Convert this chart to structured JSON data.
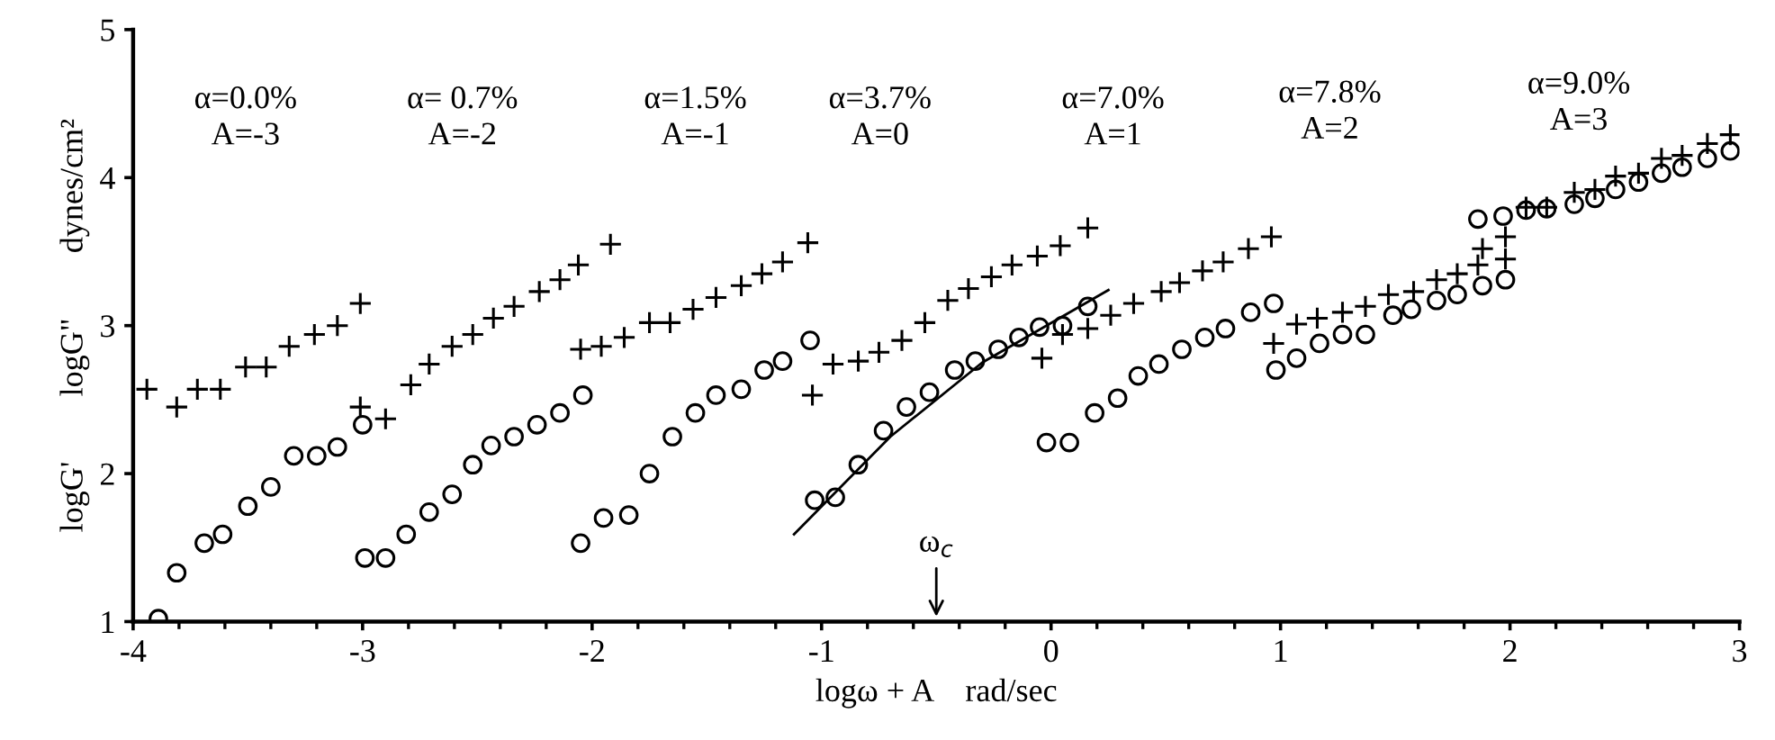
{
  "chart_data": {
    "type": "scatter",
    "xlabel": "logω + A    rad/sec",
    "ylabel": "logG'        logG\"        dynes/cm²",
    "xlim": [
      -4,
      3
    ],
    "ylim": [
      1,
      5
    ],
    "xticks": [
      -4,
      {
        "value": -3.8,
        "label": null
      },
      {
        "value": -3.6,
        "label": null
      },
      {
        "value": -3.4,
        "label": null
      },
      {
        "value": -3.2,
        "label": null
      },
      -3,
      {
        "value": -2.8,
        "label": null
      },
      {
        "value": -2.6,
        "label": null
      },
      {
        "value": -2.4,
        "label": null
      },
      {
        "value": -2.2,
        "label": null
      },
      -2,
      {
        "value": -1.8,
        "label": null
      },
      {
        "value": -1.6,
        "label": null
      },
      {
        "value": -1.4,
        "label": null
      },
      {
        "value": -1.2,
        "label": null
      },
      -1,
      {
        "value": -0.8,
        "label": null
      },
      {
        "value": -0.6,
        "label": null
      },
      {
        "value": -0.4,
        "label": null
      },
      {
        "value": -0.2,
        "label": null
      },
      0,
      {
        "value": 0.2,
        "label": null
      },
      {
        "value": 0.4,
        "label": null
      },
      {
        "value": 0.6,
        "label": null
      },
      {
        "value": 0.8,
        "label": null
      },
      1,
      {
        "value": 1.2,
        "label": null
      },
      {
        "value": 1.4,
        "label": null
      },
      {
        "value": 1.6,
        "label": null
      },
      {
        "value": 1.8,
        "label": null
      },
      2,
      {
        "value": 2.2,
        "label": null
      },
      {
        "value": 2.4,
        "label": null
      },
      {
        "value": 2.6,
        "label": null
      },
      {
        "value": 2.8,
        "label": null
      },
      3
    ],
    "yticks": [
      1,
      2,
      3,
      4,
      5
    ],
    "grid": false,
    "legend": false,
    "series": [
      {
        "color": "#000000",
        "marker": "circle",
        "x": [
          -3.89,
          -3.81,
          -3.69,
          -3.61,
          -3.5,
          -3.4,
          -3.3,
          -3.2,
          -3.11,
          -3.0,
          -2.99,
          -2.9,
          -2.81,
          -2.71,
          -2.61,
          -2.52,
          -2.44,
          -2.34,
          -2.24,
          -2.14,
          -2.04,
          -2.05,
          -1.95,
          -1.84,
          -1.75,
          -1.65,
          -1.55,
          -1.46,
          -1.35,
          -1.25,
          -1.17,
          -1.05,
          -1.03,
          -0.94,
          -0.84,
          -0.73,
          -0.63,
          -0.53,
          -0.42,
          -0.33,
          -0.23,
          -0.14,
          -0.05,
          0.05,
          0.16,
          -0.02,
          0.08,
          0.19,
          0.29,
          0.38,
          0.47,
          0.57,
          0.67,
          0.76,
          0.87,
          0.97,
          0.98,
          1.07,
          1.17,
          1.27,
          1.37,
          1.49,
          1.57,
          1.68,
          1.77,
          1.88,
          1.98,
          1.86,
          1.97,
          2.07,
          2.16,
          2.28,
          2.37,
          2.46,
          2.56,
          2.66,
          2.75,
          2.86,
          2.96
        ],
        "values": [
          1.02,
          1.33,
          1.53,
          1.59,
          1.78,
          1.91,
          2.12,
          2.12,
          2.18,
          2.33,
          1.43,
          1.43,
          1.59,
          1.74,
          1.86,
          2.06,
          2.19,
          2.25,
          2.33,
          2.41,
          2.53,
          1.53,
          1.7,
          1.72,
          2.0,
          2.25,
          2.41,
          2.53,
          2.57,
          2.7,
          2.76,
          2.9,
          1.82,
          1.84,
          2.06,
          2.29,
          2.45,
          2.55,
          2.7,
          2.76,
          2.84,
          2.92,
          2.99,
          3.0,
          3.13,
          2.21,
          2.21,
          2.41,
          2.51,
          2.66,
          2.74,
          2.84,
          2.92,
          2.98,
          3.09,
          3.15,
          2.7,
          2.78,
          2.88,
          2.94,
          2.94,
          3.07,
          3.11,
          3.17,
          3.21,
          3.27,
          3.31,
          3.72,
          3.74,
          3.78,
          3.79,
          3.82,
          3.86,
          3.92,
          3.97,
          4.03,
          4.07,
          4.13,
          4.18
        ]
      },
      {
        "color": "#000000",
        "marker": "cross",
        "x": [
          -3.94,
          -3.81,
          -3.72,
          -3.62,
          -3.51,
          -3.42,
          -3.32,
          -3.21,
          -3.11,
          -3.01,
          -3.01,
          -2.9,
          -2.79,
          -2.71,
          -2.61,
          -2.52,
          -2.43,
          -2.34,
          -2.23,
          -2.14,
          -2.06,
          -1.92,
          -2.05,
          -1.96,
          -1.86,
          -1.75,
          -1.66,
          -1.56,
          -1.46,
          -1.35,
          -1.26,
          -1.17,
          -1.06,
          -1.04,
          -0.95,
          -0.84,
          -0.75,
          -0.65,
          -0.55,
          -0.45,
          -0.36,
          -0.26,
          -0.17,
          -0.06,
          0.04,
          0.16,
          -0.04,
          0.05,
          0.16,
          0.26,
          0.36,
          0.48,
          0.56,
          0.66,
          0.75,
          0.86,
          0.96,
          0.97,
          1.07,
          1.16,
          1.27,
          1.37,
          1.47,
          1.58,
          1.68,
          1.77,
          1.86,
          1.98,
          1.88,
          1.98,
          2.07,
          2.16,
          2.28,
          2.37,
          2.46,
          2.56,
          2.66,
          2.75,
          2.86,
          2.96
        ],
        "values": [
          2.57,
          2.45,
          2.57,
          2.57,
          2.72,
          2.72,
          2.86,
          2.94,
          3.0,
          3.15,
          2.45,
          2.37,
          2.6,
          2.74,
          2.86,
          2.94,
          3.05,
          3.13,
          3.23,
          3.31,
          3.41,
          3.55,
          2.84,
          2.86,
          2.92,
          3.02,
          3.02,
          3.11,
          3.19,
          3.27,
          3.35,
          3.43,
          3.56,
          2.53,
          2.74,
          2.76,
          2.82,
          2.9,
          3.02,
          3.17,
          3.25,
          3.33,
          3.41,
          3.47,
          3.54,
          3.66,
          2.78,
          2.94,
          2.98,
          3.07,
          3.15,
          3.23,
          3.29,
          3.37,
          3.43,
          3.52,
          3.6,
          2.88,
          3.01,
          3.05,
          3.09,
          3.13,
          3.21,
          3.23,
          3.31,
          3.35,
          3.41,
          3.45,
          3.52,
          3.6,
          3.8,
          3.8,
          3.9,
          3.92,
          4.01,
          4.03,
          4.13,
          4.15,
          4.23,
          4.29
        ]
      },
      {
        "type": "line",
        "color": "#000000",
        "line_style": "solid",
        "x": [
          -1.12,
          -0.7,
          -0.3,
          0.25
        ],
        "values": [
          1.59,
          2.25,
          2.75,
          3.24
        ]
      }
    ],
    "annotations": [
      "α=0.0%\nA=-3",
      "α= 0.7%\nA=-2",
      "α=1.5%\nA=-1",
      "α=3.7%\nA=0",
      "α=7.0%\nA=1",
      "α=7.8%\nA=2",
      "α=9.0%\nA=3",
      "ω$_{c}$"
    ]
  }
}
